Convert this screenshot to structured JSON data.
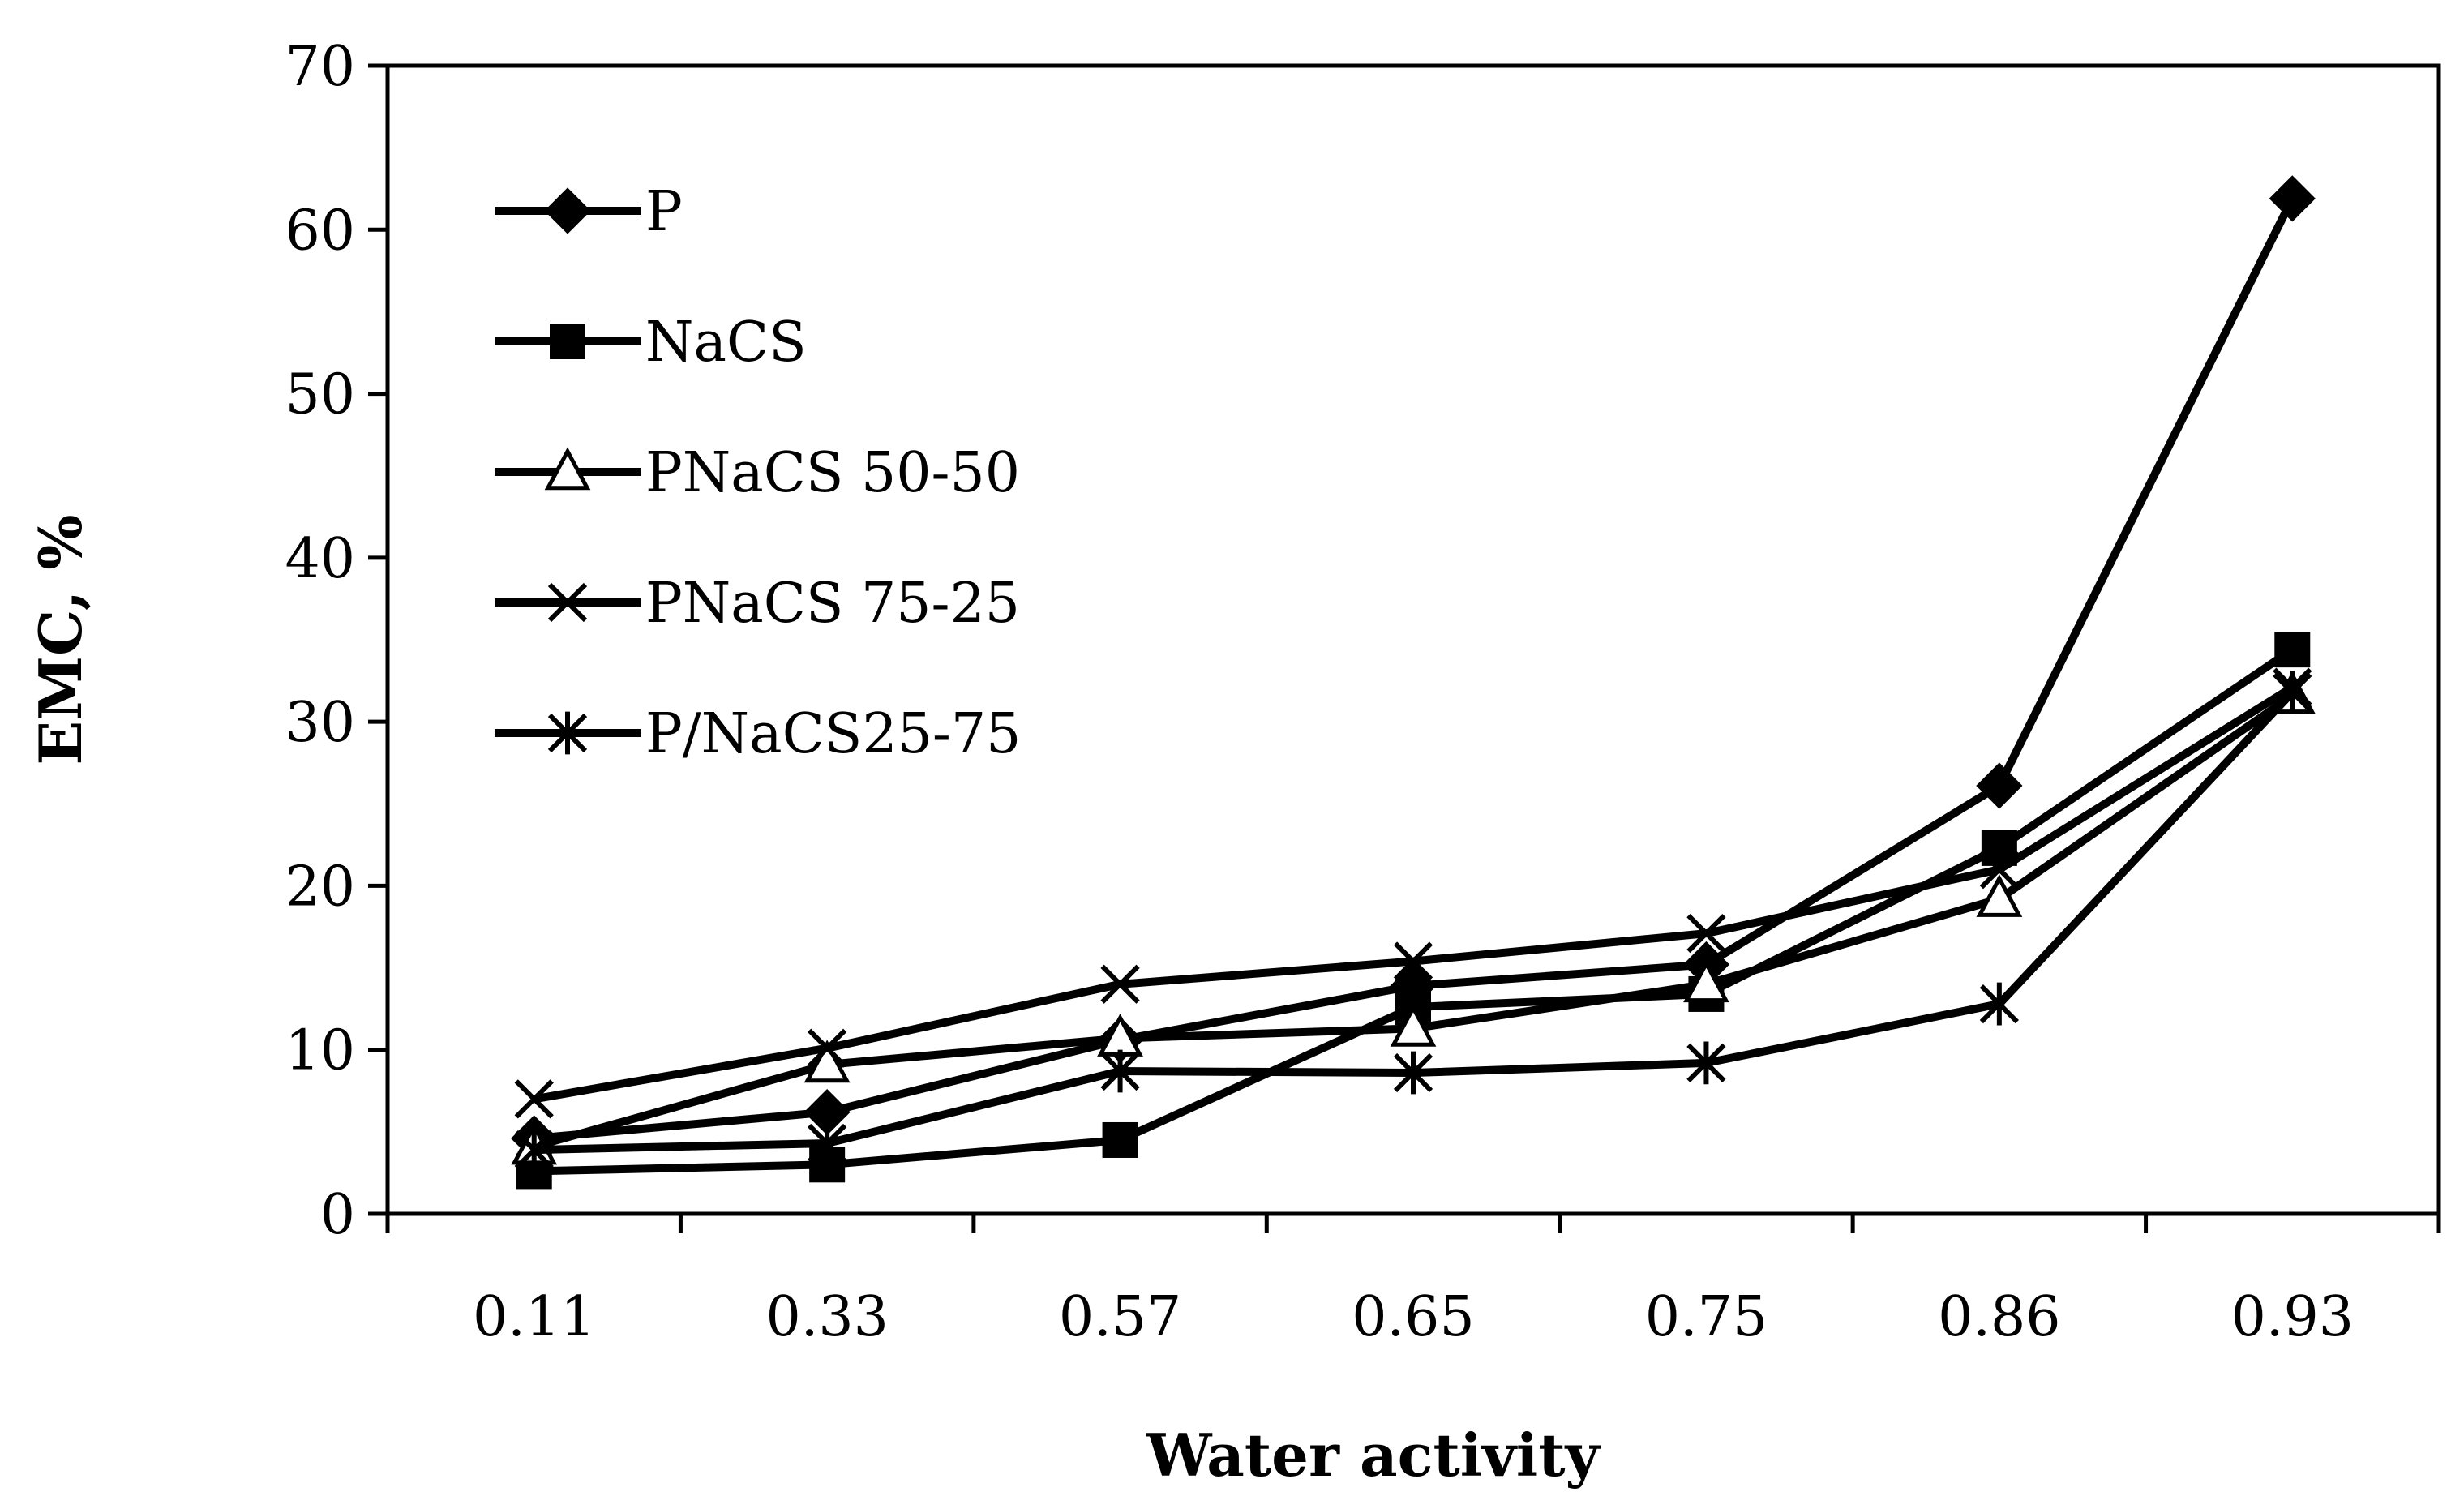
{
  "chart_data": {
    "type": "line",
    "title": "",
    "xlabel": "Water activity",
    "ylabel": "EMC, %",
    "categories": [
      "0.11",
      "0.33",
      "0.57",
      "0.65",
      "0.75",
      "0.86",
      "0.93"
    ],
    "ylim": [
      0,
      70
    ],
    "yticks": [
      0,
      10,
      20,
      30,
      40,
      50,
      60,
      70
    ],
    "yticks_labels": [
      "0",
      "10",
      "20",
      "30",
      "40",
      "50",
      "60",
      "70"
    ],
    "grid": false,
    "legend_position": "top-left",
    "line_color": "#000000",
    "series": [
      {
        "name": "P",
        "marker": "diamond",
        "values": [
          4.6,
          6.2,
          10.6,
          13.9,
          15.2,
          26.1,
          61.9
        ]
      },
      {
        "name": "NaCS",
        "marker": "square",
        "values": [
          2.6,
          3.0,
          4.5,
          12.6,
          13.4,
          22.3,
          34.4
        ]
      },
      {
        "name": "PNaCS 50-50",
        "marker": "triangle",
        "values": [
          4.1,
          9.1,
          10.7,
          11.3,
          14.0,
          19.2,
          31.6
        ]
      },
      {
        "name": "PNaCS 75-25",
        "marker": "x",
        "values": [
          7.0,
          10.1,
          14.0,
          15.4,
          17.1,
          21.0,
          32.1
        ]
      },
      {
        "name": "P/NaCS25-75",
        "marker": "asterisk",
        "values": [
          3.9,
          4.3,
          8.7,
          8.6,
          9.2,
          12.8,
          31.8
        ]
      }
    ]
  }
}
